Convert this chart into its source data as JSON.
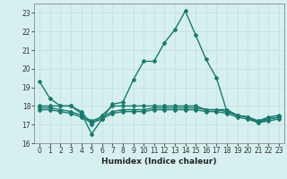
{
  "xlabel": "Humidex (Indice chaleur)",
  "bg_color": "#d6f0ef",
  "grid_color": "#c0dede",
  "line_color": "#1a7a6e",
  "xlim": [
    -0.5,
    23.5
  ],
  "ylim": [
    16,
    23.5
  ],
  "xticks": [
    0,
    1,
    2,
    3,
    4,
    5,
    6,
    7,
    8,
    9,
    10,
    11,
    12,
    13,
    14,
    15,
    16,
    17,
    18,
    19,
    20,
    21,
    22,
    23
  ],
  "yticks": [
    16,
    17,
    18,
    19,
    20,
    21,
    22,
    23
  ],
  "series": [
    {
      "x": [
        0,
        1,
        2,
        3,
        4,
        5,
        6,
        7,
        8,
        9,
        10,
        11,
        12,
        13,
        14,
        15,
        16,
        17,
        18,
        19,
        20,
        21,
        22,
        23
      ],
      "y": [
        19.3,
        18.4,
        18.0,
        18.0,
        17.6,
        16.5,
        17.3,
        18.1,
        18.2,
        19.4,
        20.4,
        20.4,
        21.4,
        22.1,
        23.1,
        21.8,
        20.5,
        19.5,
        17.7,
        17.5,
        17.4,
        17.1,
        17.3,
        17.4
      ]
    },
    {
      "x": [
        0,
        1,
        2,
        3,
        4,
        5,
        6,
        7,
        8,
        9,
        10,
        11,
        12,
        13,
        14,
        15,
        16,
        17,
        18,
        19,
        20,
        21,
        22,
        23
      ],
      "y": [
        18.0,
        18.0,
        18.0,
        18.0,
        17.7,
        17.0,
        17.5,
        18.0,
        18.0,
        18.0,
        18.0,
        18.0,
        18.0,
        18.0,
        18.0,
        18.0,
        17.8,
        17.8,
        17.8,
        17.5,
        17.4,
        17.2,
        17.4,
        17.5
      ]
    },
    {
      "x": [
        0,
        1,
        2,
        3,
        4,
        5,
        6,
        7,
        8,
        9,
        10,
        11,
        12,
        13,
        14,
        15,
        16,
        17,
        18,
        19,
        20,
        21,
        22,
        23
      ],
      "y": [
        17.9,
        17.9,
        17.8,
        17.7,
        17.5,
        17.2,
        17.4,
        17.7,
        17.8,
        17.8,
        17.8,
        17.9,
        17.9,
        17.9,
        17.9,
        17.9,
        17.8,
        17.8,
        17.7,
        17.5,
        17.4,
        17.2,
        17.3,
        17.4
      ]
    },
    {
      "x": [
        0,
        1,
        2,
        3,
        4,
        5,
        6,
        7,
        8,
        9,
        10,
        11,
        12,
        13,
        14,
        15,
        16,
        17,
        18,
        19,
        20,
        21,
        22,
        23
      ],
      "y": [
        17.8,
        17.8,
        17.7,
        17.6,
        17.4,
        17.1,
        17.3,
        17.6,
        17.7,
        17.7,
        17.7,
        17.8,
        17.8,
        17.8,
        17.8,
        17.8,
        17.7,
        17.7,
        17.6,
        17.4,
        17.3,
        17.1,
        17.2,
        17.3
      ]
    }
  ],
  "marker": "D",
  "markersize": 2.0,
  "linewidth": 1.0,
  "label_fontsize": 6.5,
  "tick_fontsize": 5.5
}
